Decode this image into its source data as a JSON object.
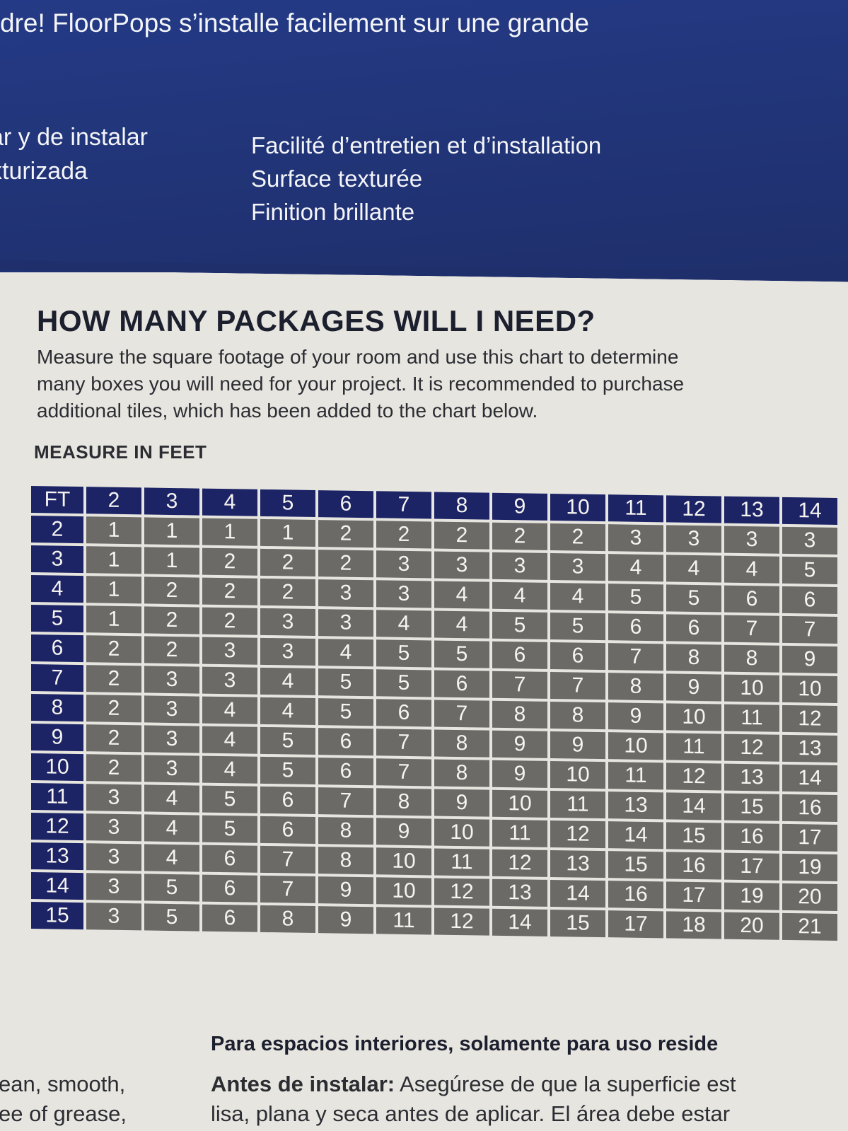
{
  "band": {
    "headline": "dre! FloorPops s’installe facilement sur une grande",
    "left_lines": [
      "ar y de instalar",
      "xturizada"
    ],
    "right_lines": [
      "Facilité d’entretien et d’installation",
      "Surface texturée",
      "Finition brillante"
    ]
  },
  "heading": "HOW MANY PACKAGES WILL I NEED?",
  "intro_lines": [
    "Measure the square footage of your room and use this chart to determine",
    "many boxes you will need for your project. It is recommended to purchase",
    "additional tiles, which has been added to the chart below."
  ],
  "measure_label": "MEASURE IN FEET",
  "chart_data": {
    "type": "table",
    "corner_label": "FT",
    "columns": [
      "2",
      "3",
      "4",
      "5",
      "6",
      "7",
      "8",
      "9",
      "10",
      "11",
      "12",
      "13",
      "14"
    ],
    "rows": [
      {
        "label": "2",
        "values": [
          "1",
          "1",
          "1",
          "1",
          "2",
          "2",
          "2",
          "2",
          "2",
          "3",
          "3",
          "3",
          "3"
        ]
      },
      {
        "label": "3",
        "values": [
          "1",
          "1",
          "2",
          "2",
          "2",
          "3",
          "3",
          "3",
          "3",
          "4",
          "4",
          "4",
          "5"
        ]
      },
      {
        "label": "4",
        "values": [
          "1",
          "2",
          "2",
          "2",
          "3",
          "3",
          "4",
          "4",
          "4",
          "5",
          "5",
          "6",
          "6"
        ]
      },
      {
        "label": "5",
        "values": [
          "1",
          "2",
          "2",
          "3",
          "3",
          "4",
          "4",
          "5",
          "5",
          "6",
          "6",
          "7",
          "7"
        ]
      },
      {
        "label": "6",
        "values": [
          "2",
          "2",
          "3",
          "3",
          "4",
          "5",
          "5",
          "6",
          "6",
          "7",
          "8",
          "8",
          "9"
        ]
      },
      {
        "label": "7",
        "values": [
          "2",
          "3",
          "3",
          "4",
          "5",
          "5",
          "6",
          "7",
          "7",
          "8",
          "9",
          "10",
          "10"
        ]
      },
      {
        "label": "8",
        "values": [
          "2",
          "3",
          "4",
          "4",
          "5",
          "6",
          "7",
          "8",
          "8",
          "9",
          "10",
          "11",
          "12"
        ]
      },
      {
        "label": "9",
        "values": [
          "2",
          "3",
          "4",
          "5",
          "6",
          "7",
          "8",
          "9",
          "9",
          "10",
          "11",
          "12",
          "13"
        ]
      },
      {
        "label": "10",
        "values": [
          "2",
          "3",
          "4",
          "5",
          "6",
          "7",
          "8",
          "9",
          "10",
          "11",
          "12",
          "13",
          "14"
        ]
      },
      {
        "label": "11",
        "values": [
          "3",
          "4",
          "5",
          "6",
          "7",
          "8",
          "9",
          "10",
          "11",
          "13",
          "14",
          "15",
          "16"
        ]
      },
      {
        "label": "12",
        "values": [
          "3",
          "4",
          "5",
          "6",
          "8",
          "9",
          "10",
          "11",
          "12",
          "14",
          "15",
          "16",
          "17"
        ]
      },
      {
        "label": "13",
        "values": [
          "3",
          "4",
          "6",
          "7",
          "8",
          "10",
          "11",
          "12",
          "13",
          "15",
          "16",
          "17",
          "19"
        ]
      },
      {
        "label": "14",
        "values": [
          "3",
          "5",
          "6",
          "7",
          "9",
          "10",
          "12",
          "13",
          "14",
          "16",
          "17",
          "19",
          "20"
        ]
      },
      {
        "label": "15",
        "values": [
          "3",
          "5",
          "6",
          "8",
          "9",
          "11",
          "12",
          "14",
          "15",
          "17",
          "18",
          "20",
          "21"
        ]
      }
    ]
  },
  "footer": {
    "es_title": "Para espacios interiores, solamente para uso reside",
    "left_lines": [
      "ean, smooth,",
      "ee of grease,"
    ],
    "es_lead": "Antes de instalar:",
    "es_line1_rest": " Asegúrese de que la superficie est",
    "es_line2": "lisa, plana y seca antes de aplicar. El área debe estar"
  },
  "colors": {
    "band_blue": "#213477",
    "header_navy": "#1d2466",
    "cell_gray": "#6c6a66",
    "paper": "#e7e5df"
  }
}
